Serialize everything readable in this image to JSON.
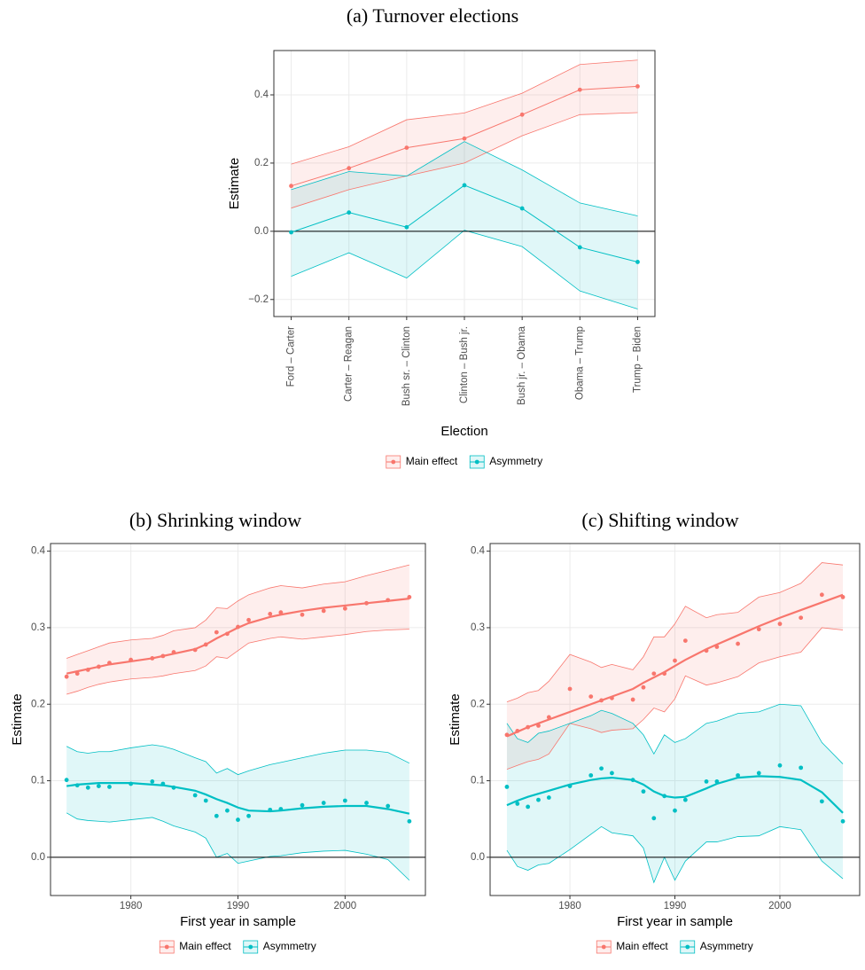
{
  "chart_data": [
    {
      "type": "line",
      "title": "(a) Turnover elections",
      "x_label": "Election",
      "y_label": "Estimate",
      "categories": [
        "Ford – Carter",
        "Carter – Reagan",
        "Bush sr. – Clinton",
        "Clinton – Bush jr.",
        "Bush jr. – Obama",
        "Obama – Trump",
        "Trump – Biden"
      ],
      "ylim": [
        -0.25,
        0.53
      ],
      "yticks": [
        {
          "value": -0.2,
          "label": "−0.2"
        },
        {
          "value": 0,
          "label": "0.0"
        },
        0.2,
        0.4
      ],
      "hline": 0,
      "grid": true,
      "series": [
        {
          "name": "Main effect",
          "color": "#F8766D",
          "values": [
            0.133,
            0.185,
            0.245,
            0.272,
            0.342,
            0.415,
            0.425
          ],
          "upper": [
            0.197,
            0.248,
            0.327,
            0.347,
            0.405,
            0.489,
            0.502
          ],
          "lower": [
            0.068,
            0.122,
            0.162,
            0.2,
            0.28,
            0.342,
            0.348
          ]
        },
        {
          "name": "Asymmetry",
          "color": "#00BFC4",
          "values": [
            -0.003,
            0.055,
            0.012,
            0.135,
            0.067,
            -0.047,
            -0.09
          ],
          "upper": [
            0.122,
            0.175,
            0.162,
            0.263,
            0.18,
            0.083,
            0.045
          ],
          "lower": [
            -0.132,
            -0.063,
            -0.137,
            0.003,
            -0.045,
            -0.175,
            -0.228
          ]
        }
      ]
    },
    {
      "type": "line",
      "title": "(b) Shrinking window",
      "x_label": "First year in sample",
      "y_label": "Estimate",
      "x": [
        1974,
        1975,
        1976,
        1977,
        1978,
        1980,
        1982,
        1983,
        1984,
        1986,
        1987,
        1988,
        1989,
        1990,
        1991,
        1993,
        1994,
        1996,
        1998,
        2000,
        2002,
        2004,
        2006
      ],
      "xlim": [
        1972.5,
        2007.5
      ],
      "xticks": [
        1980,
        1990,
        2000
      ],
      "ylim": [
        -0.05,
        0.41
      ],
      "yticks": [
        {
          "value": 0,
          "label": "0.0"
        },
        0.1,
        0.2,
        0.3,
        0.4
      ],
      "hline": 0,
      "grid": true,
      "series": [
        {
          "name": "Main effect",
          "color": "#F8766D",
          "values": [
            0.236,
            0.24,
            0.245,
            0.249,
            0.254,
            0.258,
            0.26,
            0.263,
            0.268,
            0.271,
            0.278,
            0.294,
            0.292,
            0.301,
            0.31,
            0.318,
            0.32,
            0.317,
            0.322,
            0.325,
            0.332,
            0.336,
            0.34
          ],
          "upper": [
            0.26,
            0.265,
            0.27,
            0.275,
            0.28,
            0.284,
            0.286,
            0.29,
            0.296,
            0.3,
            0.31,
            0.326,
            0.325,
            0.335,
            0.343,
            0.352,
            0.355,
            0.352,
            0.357,
            0.36,
            0.368,
            0.375,
            0.382
          ],
          "lower": [
            0.213,
            0.217,
            0.222,
            0.226,
            0.229,
            0.233,
            0.235,
            0.237,
            0.24,
            0.244,
            0.25,
            0.262,
            0.26,
            0.27,
            0.28,
            0.286,
            0.288,
            0.285,
            0.288,
            0.291,
            0.295,
            0.297,
            0.298
          ],
          "smooth": [
            0.24,
            0.243,
            0.246,
            0.249,
            0.252,
            0.256,
            0.26,
            0.263,
            0.266,
            0.272,
            0.278,
            0.286,
            0.293,
            0.3,
            0.306,
            0.314,
            0.317,
            0.322,
            0.326,
            0.329,
            0.332,
            0.335,
            0.338
          ]
        },
        {
          "name": "Asymmetry",
          "color": "#00BFC4",
          "values": [
            0.101,
            0.094,
            0.091,
            0.093,
            0.092,
            0.096,
            0.099,
            0.096,
            0.091,
            0.081,
            0.074,
            0.054,
            0.061,
            0.049,
            0.054,
            0.062,
            0.063,
            0.068,
            0.071,
            0.074,
            0.071,
            0.067,
            0.047
          ],
          "upper": [
            0.145,
            0.138,
            0.136,
            0.138,
            0.138,
            0.143,
            0.147,
            0.145,
            0.141,
            0.13,
            0.125,
            0.11,
            0.116,
            0.108,
            0.113,
            0.121,
            0.124,
            0.13,
            0.136,
            0.14,
            0.14,
            0.137,
            0.123
          ],
          "lower": [
            0.058,
            0.05,
            0.048,
            0.047,
            0.046,
            0.049,
            0.052,
            0.047,
            0.041,
            0.033,
            0.025,
            0,
            0.005,
            -0.008,
            -0.005,
            0.001,
            0.002,
            0.006,
            0.008,
            0.009,
            0.004,
            -0.003,
            -0.03
          ],
          "smooth": [
            0.093,
            0.095,
            0.096,
            0.097,
            0.097,
            0.097,
            0.095,
            0.094,
            0.092,
            0.087,
            0.082,
            0.076,
            0.071,
            0.065,
            0.061,
            0.06,
            0.061,
            0.064,
            0.066,
            0.067,
            0.067,
            0.063,
            0.057
          ]
        }
      ]
    },
    {
      "type": "line",
      "title": "(c) Shifting window",
      "x_label": "First year in sample",
      "y_label": "Estimate",
      "x": [
        1974,
        1975,
        1976,
        1977,
        1978,
        1980,
        1982,
        1983,
        1984,
        1986,
        1987,
        1988,
        1989,
        1990,
        1991,
        1993,
        1994,
        1996,
        1998,
        2000,
        2002,
        2004,
        2006
      ],
      "xlim": [
        1972.4,
        2007.6
      ],
      "xticks": [
        1980,
        1990,
        2000
      ],
      "ylim": [
        -0.05,
        0.41
      ],
      "yticks": [
        {
          "value": 0,
          "label": "0.0"
        },
        0.1,
        0.2,
        0.3,
        0.4
      ],
      "hline": 0,
      "grid": true,
      "series": [
        {
          "name": "Main effect",
          "color": "#F8766D",
          "values": [
            0.16,
            0.165,
            0.17,
            0.172,
            0.183,
            0.22,
            0.21,
            0.205,
            0.208,
            0.206,
            0.222,
            0.24,
            0.24,
            0.257,
            0.283,
            0.27,
            0.275,
            0.279,
            0.298,
            0.305,
            0.313,
            0.343,
            0.34
          ],
          "upper": [
            0.203,
            0.208,
            0.215,
            0.218,
            0.23,
            0.265,
            0.255,
            0.248,
            0.252,
            0.245,
            0.262,
            0.288,
            0.288,
            0.305,
            0.328,
            0.313,
            0.317,
            0.32,
            0.34,
            0.346,
            0.358,
            0.385,
            0.382
          ],
          "lower": [
            0.115,
            0.12,
            0.125,
            0.128,
            0.135,
            0.175,
            0.168,
            0.163,
            0.166,
            0.168,
            0.18,
            0.195,
            0.19,
            0.207,
            0.237,
            0.225,
            0.228,
            0.236,
            0.254,
            0.262,
            0.268,
            0.3,
            0.297
          ],
          "smooth": [
            0.158,
            0.164,
            0.17,
            0.175,
            0.18,
            0.19,
            0.2,
            0.205,
            0.21,
            0.22,
            0.228,
            0.235,
            0.242,
            0.25,
            0.258,
            0.272,
            0.278,
            0.29,
            0.302,
            0.313,
            0.323,
            0.333,
            0.343
          ]
        },
        {
          "name": "Asymmetry",
          "color": "#00BFC4",
          "values": [
            0.092,
            0.07,
            0.066,
            0.075,
            0.078,
            0.093,
            0.107,
            0.116,
            0.11,
            0.101,
            0.086,
            0.051,
            0.08,
            0.061,
            0.075,
            0.099,
            0.099,
            0.107,
            0.11,
            0.12,
            0.117,
            0.073,
            0.047
          ],
          "upper": [
            0.175,
            0.155,
            0.15,
            0.162,
            0.165,
            0.175,
            0.185,
            0.192,
            0.188,
            0.175,
            0.16,
            0.135,
            0.16,
            0.15,
            0.155,
            0.175,
            0.178,
            0.188,
            0.19,
            0.2,
            0.198,
            0.15,
            0.122
          ],
          "lower": [
            0.009,
            -0.012,
            -0.017,
            -0.01,
            -0.008,
            0.01,
            0.03,
            0.04,
            0.032,
            0.028,
            0.012,
            -0.033,
            0,
            -0.03,
            -0.005,
            0.02,
            0.02,
            0.027,
            0.028,
            0.04,
            0.036,
            -0.005,
            -0.028
          ],
          "smooth": [
            0.068,
            0.074,
            0.079,
            0.083,
            0.087,
            0.095,
            0.101,
            0.103,
            0.104,
            0.101,
            0.095,
            0.086,
            0.08,
            0.078,
            0.079,
            0.09,
            0.096,
            0.104,
            0.106,
            0.105,
            0.101,
            0.085,
            0.058
          ]
        }
      ]
    }
  ]
}
